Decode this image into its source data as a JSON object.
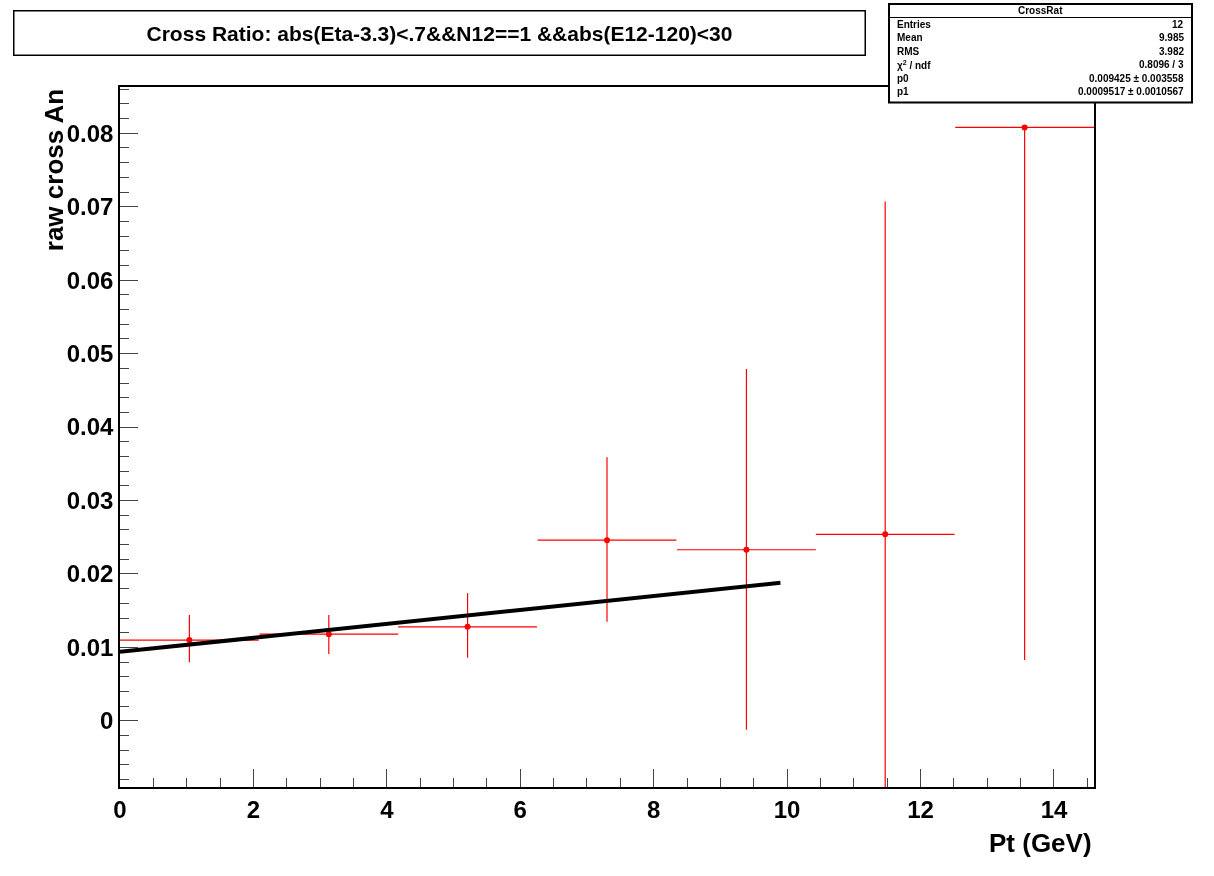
{
  "chart_data": {
    "type": "scatter",
    "title": "Cross Ratio: abs(Eta-3.3)<.7&&N12==1 &&abs(E12-120)<30",
    "xlabel": "Pt (GeV)",
    "ylabel": "raw cross An",
    "annotations": [
      "CrossRat",
      "Entries",
      "12",
      "Mean",
      "9.985",
      "RMS",
      "3.982",
      "χ$^{2}$ / ndf",
      "0.8096 / 3",
      "p0",
      "0.009425 ± 0.003558",
      "p1",
      "0.0009517 ± 0.0010567"
    ],
    "xlim": [
      0,
      14.6
    ],
    "xticks": [
      0,
      2,
      4,
      6,
      8,
      10,
      12,
      14
    ],
    "ylim": [
      -0.009,
      0.0863
    ],
    "yticks": [
      0,
      0.01,
      0.02,
      0.03,
      0.04,
      0.05,
      0.06,
      0.07,
      0.08
    ],
    "series": [
      {
        "color": "#ff0000",
        "x": [
          1.04,
          3.13,
          5.21,
          7.3,
          9.39,
          11.47,
          13.56
        ],
        "values": [
          0.011,
          0.0118,
          0.0128,
          0.0246,
          0.0233,
          0.0254,
          0.0808
        ],
        "xerrors": [
          1.04,
          1.04,
          1.04,
          1.04,
          1.04,
          1.04,
          1.04
        ],
        "errors": [
          [
            0.008,
            0.0144
          ],
          [
            0.0091,
            0.0144
          ],
          [
            0.0086,
            0.0174
          ],
          [
            0.0135,
            0.0359
          ],
          [
            -0.0012,
            0.0479
          ],
          [
            -0.009,
            0.0707
          ],
          [
            0.0083,
            0.0808
          ]
        ]
      },
      {
        "type": "line",
        "color": "#000000",
        "x": [
          0,
          9.9
        ],
        "values": [
          0.0094,
          0.0188
        ],
        "line_style": "solid"
      }
    ]
  }
}
